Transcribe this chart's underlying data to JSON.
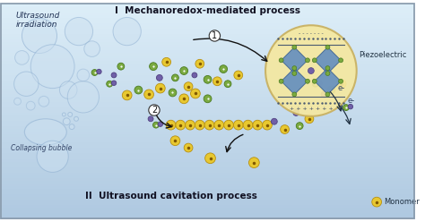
{
  "title": "I  Mechanoredox-mediated process",
  "title2": "II  Ultrasound cavitation process",
  "label_ultrasound": "Ultrasound\nirradiation",
  "label_collapsing": "Collapsing bubble",
  "label_piezo": "Piezoelectric",
  "label_monomer": "Monomer",
  "label_e1": "e-",
  "label_e2": "e-",
  "bg_top": "#ddeef8",
  "bg_bottom": "#aec8e0",
  "circle_piezo_color": "#f5e8a0",
  "circle_piezo_edge": "#c8b060",
  "monomer_color": "#e8c830",
  "monomer_edge": "#b89010",
  "catalyst_color": "#7aaa40",
  "catalyst_edge": "#4a7a20",
  "initiator_color": "#7060a8",
  "initiator_edge": "#504080",
  "bubble_color": "#cce0f0",
  "bubble_edge": "#88aace",
  "crystal_color": "#5a88c0",
  "crystal_edge": "#3a6090"
}
